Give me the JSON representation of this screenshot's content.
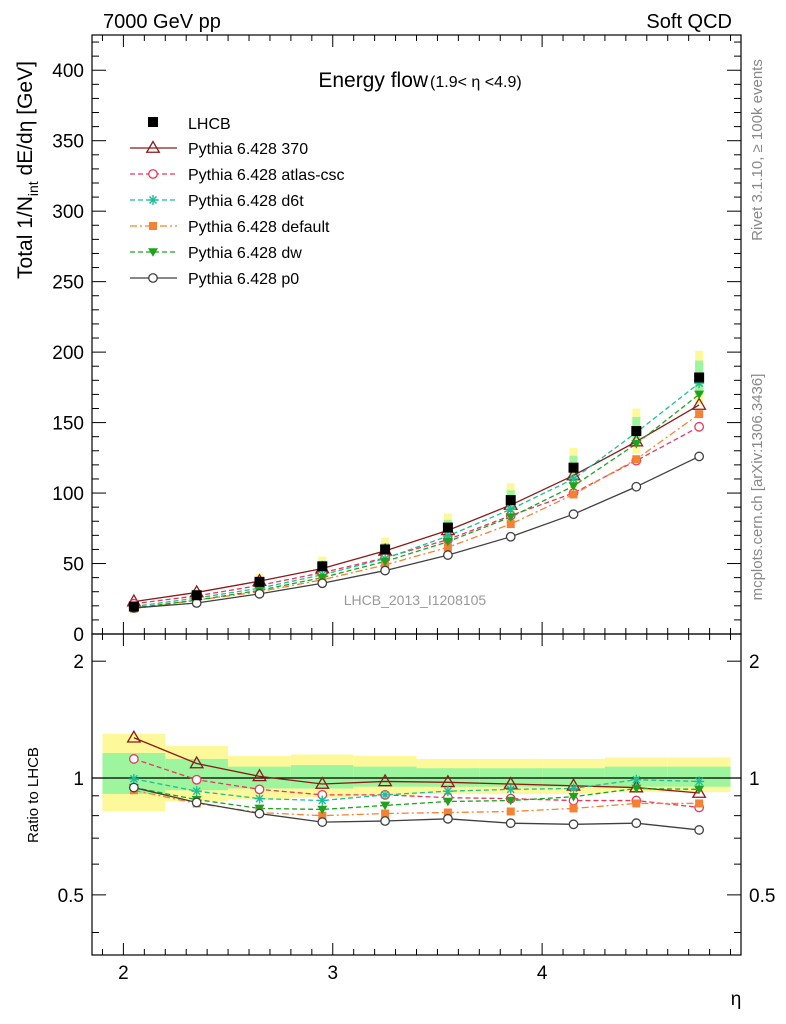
{
  "header": {
    "left": "7000 GeV pp",
    "right": "Soft QCD"
  },
  "side": {
    "rivet": "Rivet 3.1.10, ≥ 100k events",
    "mcplots": "mcplots.cern.ch [arXiv:1306.3436]"
  },
  "watermark": "LHCB_2013_I1208105",
  "chart_data": [
    {
      "type": "line",
      "title_main": "Energy flow",
      "title_sub": "(1.9< η <4.9)",
      "ylabel_main": "Total 1/N",
      "ylabel_sub": "int",
      "ylabel_tail": " dE/dη [GeV]",
      "xlim": [
        1.85,
        4.95
      ],
      "ylim": [
        0,
        425
      ],
      "yticks": [
        0,
        50,
        100,
        150,
        200,
        250,
        300,
        350,
        400
      ],
      "x": [
        2.05,
        2.35,
        2.65,
        2.95,
        3.25,
        3.55,
        3.85,
        4.15,
        4.45,
        4.75
      ],
      "data": {
        "name": "LHCB",
        "values": [
          19.5,
          27.5,
          37,
          48,
          60,
          75.5,
          95,
          118,
          144,
          182
        ],
        "band_inner": [
          3.5,
          3.5,
          3.5,
          4,
          4.5,
          5.5,
          7,
          8.5,
          10,
          12
        ],
        "band_outer": [
          4,
          4.5,
          5.5,
          7,
          8.5,
          10,
          12,
          14,
          16,
          19
        ]
      },
      "series": [
        {
          "name": "Pythia 6.428 370",
          "color": "#8b1a1a",
          "marker": "triangle-open",
          "dash": "solid",
          "values": [
            23,
            29.5,
            37.5,
            46.5,
            59,
            73.5,
            91.5,
            112.5,
            136.5,
            162.5
          ]
        },
        {
          "name": "Pythia 6.428 atlas-csc",
          "color": "#e8375c",
          "marker": "circle-open",
          "dash": "dashed",
          "values": [
            21.5,
            27,
            34.5,
            43.5,
            54,
            67,
            84,
            100,
            123,
            147
          ]
        },
        {
          "name": "Pythia 6.428 d6t",
          "color": "#1ebd96",
          "marker": "star",
          "dash": "dashed",
          "values": [
            19.5,
            25.5,
            32.5,
            42,
            53.5,
            69.5,
            88.5,
            110,
            143,
            178
          ]
        },
        {
          "name": "Pythia 6.428 default",
          "color": "#f58233",
          "marker": "square",
          "dash": "dashdot",
          "values": [
            18,
            24,
            30,
            38.5,
            49,
            61.5,
            78,
            99,
            124,
            156
          ]
        },
        {
          "name": "Pythia 6.428 dw",
          "color": "#1ea31e",
          "marker": "triangle-down",
          "dash": "dashed",
          "values": [
            18.5,
            24,
            31,
            40,
            51.5,
            65.5,
            83,
            105,
            135,
            170
          ]
        },
        {
          "name": "Pythia 6.428 p0",
          "color": "#404040",
          "marker": "circle-open",
          "dash": "solid",
          "values": [
            18.5,
            22,
            28.5,
            36,
            45,
            56,
            69,
            85,
            104.5,
            126
          ]
        }
      ]
    },
    {
      "type": "line",
      "ylabel": "Ratio to LHCB",
      "xlabel": "η",
      "xlim": [
        1.85,
        4.95
      ],
      "ylim": [
        0.35,
        2.35
      ],
      "yscale": "log",
      "yticks": [
        "0.5",
        "1",
        "2"
      ],
      "xticks": [
        "2",
        "3",
        "4"
      ],
      "bin_edges": [
        1.9,
        2.2,
        2.5,
        2.8,
        3.1,
        3.4,
        3.7,
        4.0,
        4.3,
        4.6,
        4.9
      ],
      "band_inner": [
        [
          0.91,
          1.16
        ],
        [
          0.93,
          1.12
        ],
        [
          0.94,
          1.07
        ],
        [
          0.94,
          1.08
        ],
        [
          0.95,
          1.07
        ],
        [
          0.95,
          1.06
        ],
        [
          0.95,
          1.06
        ],
        [
          0.95,
          1.06
        ],
        [
          0.95,
          1.07
        ],
        [
          0.95,
          1.07
        ]
      ],
      "band_outer": [
        [
          0.82,
          1.3
        ],
        [
          0.87,
          1.21
        ],
        [
          0.88,
          1.14
        ],
        [
          0.89,
          1.15
        ],
        [
          0.9,
          1.14
        ],
        [
          0.91,
          1.12
        ],
        [
          0.91,
          1.12
        ],
        [
          0.91,
          1.12
        ],
        [
          0.92,
          1.13
        ],
        [
          0.92,
          1.13
        ]
      ],
      "x": [
        2.05,
        2.35,
        2.65,
        2.95,
        3.25,
        3.55,
        3.85,
        4.15,
        4.45,
        4.75
      ],
      "series": [
        {
          "name": "Pythia 6.428 370",
          "values": [
            1.27,
            1.09,
            1.01,
            0.965,
            0.98,
            0.975,
            0.965,
            0.955,
            0.945,
            0.915
          ]
        },
        {
          "name": "Pythia 6.428 atlas-csc",
          "values": [
            1.12,
            0.99,
            0.935,
            0.905,
            0.905,
            0.89,
            0.885,
            0.875,
            0.875,
            0.84
          ]
        },
        {
          "name": "Pythia 6.428 d6t",
          "values": [
            0.995,
            0.925,
            0.885,
            0.875,
            0.905,
            0.925,
            0.935,
            0.94,
            0.99,
            0.98
          ]
        },
        {
          "name": "Pythia 6.428 default",
          "values": [
            0.93,
            0.86,
            0.815,
            0.8,
            0.81,
            0.815,
            0.82,
            0.835,
            0.86,
            0.86
          ]
        },
        {
          "name": "Pythia 6.428 dw",
          "values": [
            0.945,
            0.88,
            0.835,
            0.83,
            0.85,
            0.87,
            0.875,
            0.895,
            0.94,
            0.935
          ]
        },
        {
          "name": "Pythia 6.428 p0",
          "values": [
            0.945,
            0.865,
            0.81,
            0.77,
            0.775,
            0.785,
            0.765,
            0.76,
            0.765,
            0.735
          ]
        }
      ]
    }
  ]
}
